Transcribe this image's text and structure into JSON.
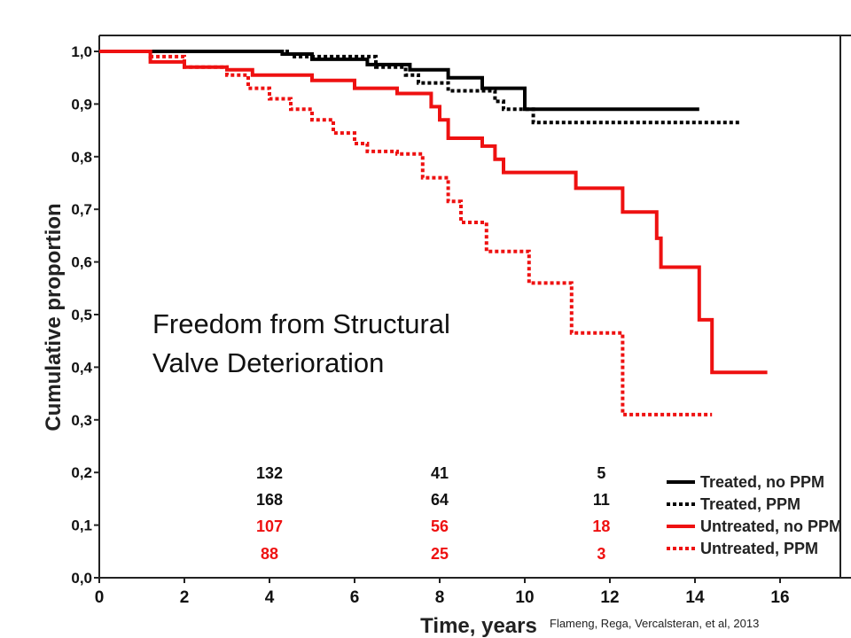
{
  "chart_data": {
    "type": "line",
    "title": "",
    "annotation": [
      "Freedom from Structural",
      "Valve Deterioration"
    ],
    "xlabel": "Time, years",
    "ylabel": "Cumulative proportion",
    "xlim": [
      0,
      17
    ],
    "ylim": [
      0,
      1.05
    ],
    "x_ticks": [
      0,
      2,
      4,
      6,
      8,
      10,
      12,
      14,
      16
    ],
    "x_tick_labels": [
      "0",
      "2",
      "4",
      "6",
      "8",
      "10",
      "12",
      "14",
      "16"
    ],
    "y_ticks": [
      0,
      0.1,
      0.2,
      0.3,
      0.4,
      0.5,
      0.6,
      0.7,
      0.8,
      0.9,
      1.0
    ],
    "y_tick_labels": [
      "0,0",
      "0,1",
      "0,2",
      "0,3",
      "0,4",
      "0,5",
      "0,6",
      "0,7",
      "0,8",
      "0,9",
      "1,0"
    ],
    "grid": false,
    "legend_position": "bottom-right",
    "series": [
      {
        "name": "Treated, no PPM",
        "color": "#000000",
        "dash": "solid",
        "points": [
          [
            0,
            1.0
          ],
          [
            4.3,
            1.0
          ],
          [
            4.3,
            0.995
          ],
          [
            5.0,
            0.995
          ],
          [
            5.0,
            0.985
          ],
          [
            6.3,
            0.985
          ],
          [
            6.3,
            0.975
          ],
          [
            7.3,
            0.975
          ],
          [
            7.3,
            0.965
          ],
          [
            8.2,
            0.965
          ],
          [
            8.2,
            0.95
          ],
          [
            9.0,
            0.95
          ],
          [
            9.0,
            0.93
          ],
          [
            10.0,
            0.93
          ],
          [
            10.0,
            0.89
          ],
          [
            14.1,
            0.89
          ]
        ]
      },
      {
        "name": "Treated, PPM",
        "color": "#000000",
        "dash": "dotted",
        "points": [
          [
            0,
            1.0
          ],
          [
            4.5,
            1.0
          ],
          [
            4.5,
            0.99
          ],
          [
            6.5,
            0.99
          ],
          [
            6.5,
            0.97
          ],
          [
            7.2,
            0.97
          ],
          [
            7.2,
            0.955
          ],
          [
            7.5,
            0.955
          ],
          [
            7.5,
            0.94
          ],
          [
            8.2,
            0.94
          ],
          [
            8.2,
            0.925
          ],
          [
            9.3,
            0.925
          ],
          [
            9.3,
            0.905
          ],
          [
            9.5,
            0.905
          ],
          [
            9.5,
            0.89
          ],
          [
            10.2,
            0.89
          ],
          [
            10.2,
            0.865
          ],
          [
            15.1,
            0.865
          ]
        ]
      },
      {
        "name": "Untreated, no PPM",
        "color": "#ee1111",
        "dash": "solid",
        "points": [
          [
            0,
            1.0
          ],
          [
            1.2,
            1.0
          ],
          [
            1.2,
            0.98
          ],
          [
            2.0,
            0.98
          ],
          [
            2.0,
            0.97
          ],
          [
            3.0,
            0.97
          ],
          [
            3.0,
            0.965
          ],
          [
            3.6,
            0.965
          ],
          [
            3.6,
            0.955
          ],
          [
            5.0,
            0.955
          ],
          [
            5.0,
            0.945
          ],
          [
            6.0,
            0.945
          ],
          [
            6.0,
            0.93
          ],
          [
            7.0,
            0.93
          ],
          [
            7.0,
            0.92
          ],
          [
            7.8,
            0.92
          ],
          [
            7.8,
            0.895
          ],
          [
            8.0,
            0.895
          ],
          [
            8.0,
            0.87
          ],
          [
            8.2,
            0.87
          ],
          [
            8.2,
            0.835
          ],
          [
            9.0,
            0.835
          ],
          [
            9.0,
            0.82
          ],
          [
            9.3,
            0.82
          ],
          [
            9.3,
            0.795
          ],
          [
            9.5,
            0.795
          ],
          [
            9.5,
            0.77
          ],
          [
            11.2,
            0.77
          ],
          [
            11.2,
            0.74
          ],
          [
            12.3,
            0.74
          ],
          [
            12.3,
            0.695
          ],
          [
            13.1,
            0.695
          ],
          [
            13.1,
            0.645
          ],
          [
            13.2,
            0.645
          ],
          [
            13.2,
            0.59
          ],
          [
            14.1,
            0.59
          ],
          [
            14.1,
            0.49
          ],
          [
            14.4,
            0.49
          ],
          [
            14.4,
            0.39
          ],
          [
            15.7,
            0.39
          ]
        ]
      },
      {
        "name": "Untreated, PPM",
        "color": "#ee1111",
        "dash": "dotted",
        "points": [
          [
            0,
            1.0
          ],
          [
            1.2,
            1.0
          ],
          [
            1.2,
            0.99
          ],
          [
            2.0,
            0.99
          ],
          [
            2.0,
            0.97
          ],
          [
            3.0,
            0.97
          ],
          [
            3.0,
            0.955
          ],
          [
            3.5,
            0.955
          ],
          [
            3.5,
            0.93
          ],
          [
            4.0,
            0.93
          ],
          [
            4.0,
            0.91
          ],
          [
            4.5,
            0.91
          ],
          [
            4.5,
            0.89
          ],
          [
            5.0,
            0.89
          ],
          [
            5.0,
            0.87
          ],
          [
            5.5,
            0.87
          ],
          [
            5.5,
            0.845
          ],
          [
            6.0,
            0.845
          ],
          [
            6.0,
            0.825
          ],
          [
            6.3,
            0.825
          ],
          [
            6.3,
            0.81
          ],
          [
            7.0,
            0.81
          ],
          [
            7.0,
            0.805
          ],
          [
            7.6,
            0.805
          ],
          [
            7.6,
            0.76
          ],
          [
            8.2,
            0.76
          ],
          [
            8.2,
            0.715
          ],
          [
            8.5,
            0.715
          ],
          [
            8.5,
            0.675
          ],
          [
            9.1,
            0.675
          ],
          [
            9.1,
            0.62
          ],
          [
            10.1,
            0.62
          ],
          [
            10.1,
            0.56
          ],
          [
            11.1,
            0.56
          ],
          [
            11.1,
            0.465
          ],
          [
            12.3,
            0.465
          ],
          [
            12.3,
            0.31
          ],
          [
            14.4,
            0.31
          ]
        ]
      }
    ],
    "risk_table": [
      {
        "series": "Treated, no PPM",
        "color": "#111111",
        "values": [
          "132",
          "41",
          "5"
        ]
      },
      {
        "series": "Treated, PPM",
        "color": "#111111",
        "values": [
          "168",
          "64",
          "11"
        ]
      },
      {
        "series": "Untreated, no PPM",
        "color": "#ee1111",
        "values": [
          "107",
          "56",
          "18"
        ]
      },
      {
        "series": "Untreated, PPM",
        "color": "#ee1111",
        "values": [
          "88",
          "25",
          "3"
        ]
      }
    ],
    "risk_table_x": [
      4,
      8,
      11.8
    ],
    "credit": "Flameng, Rega, Vercalsteran, et al, 2013"
  }
}
